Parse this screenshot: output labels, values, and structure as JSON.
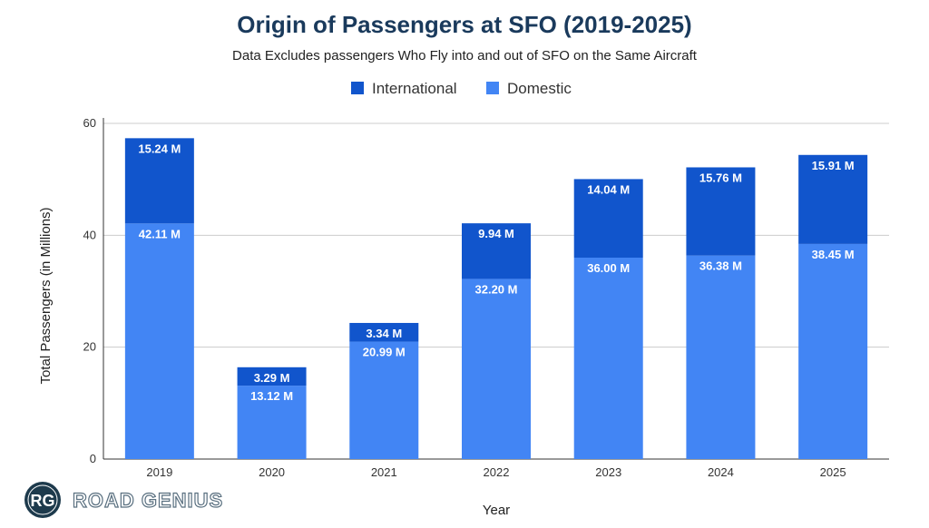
{
  "chart_data": {
    "type": "bar",
    "stacked": true,
    "title": "Origin of Passengers at SFO (2019-2025)",
    "subtitle": "Data Excludes passengers Who Fly into and out of SFO on the Same Aircraft",
    "xlabel": "Year",
    "ylabel": "Total Passengers (in Millions)",
    "ylim": [
      0,
      60
    ],
    "yticks": [
      0,
      20,
      40,
      60
    ],
    "grid": true,
    "legend_position": "top-center",
    "categories": [
      "2019",
      "2020",
      "2021",
      "2022",
      "2023",
      "2024",
      "2025"
    ],
    "series": [
      {
        "name": "Domestic",
        "color": "#4285F4",
        "values": [
          42.11,
          13.12,
          20.99,
          32.2,
          36.0,
          36.38,
          38.45
        ],
        "labels": [
          "42.11 M",
          "13.12 M",
          "20.99 M",
          "32.20 M",
          "36.00 M",
          "36.38 M",
          "38.45 M"
        ]
      },
      {
        "name": "International",
        "color": "#1155CC",
        "values": [
          15.24,
          3.29,
          3.34,
          9.94,
          14.04,
          15.76,
          15.91
        ],
        "labels": [
          "15.24 M",
          "3.29 M",
          "3.34 M",
          "9.94 M",
          "14.04 M",
          "15.76 M",
          "15.91 M"
        ]
      }
    ],
    "legend_order": [
      "International",
      "Domestic"
    ]
  },
  "branding": {
    "logo_initials": "RG",
    "logo_text": "ROAD GENIUS"
  }
}
